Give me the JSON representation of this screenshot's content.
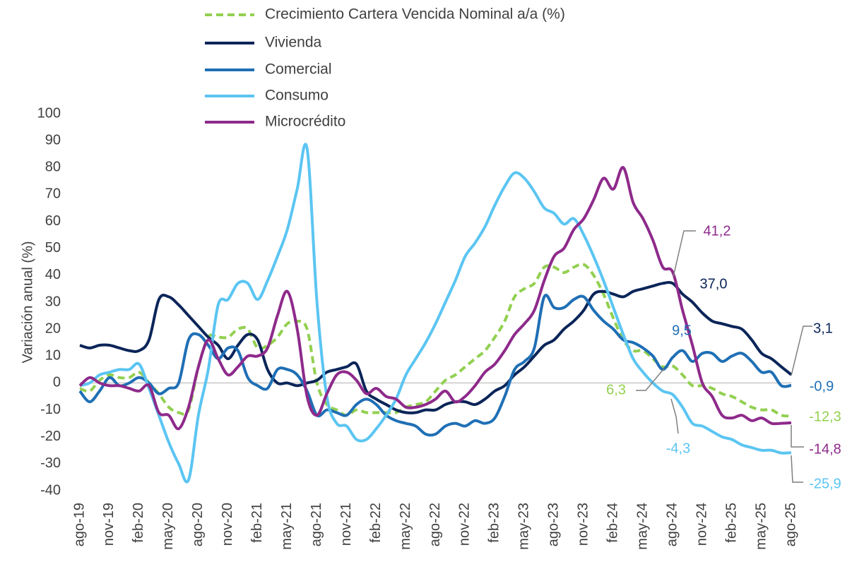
{
  "chart_data": {
    "type": "line",
    "y_axis_label": "Variación anual (%)",
    "ylim": [
      -40,
      100
    ],
    "yticks": [
      -40,
      -30,
      -20,
      -10,
      0,
      10,
      20,
      30,
      40,
      50,
      60,
      70,
      80,
      90,
      100
    ],
    "grid": false,
    "categories": [
      "ago-19",
      null,
      null,
      "nov-19",
      null,
      null,
      "feb-20",
      null,
      null,
      "may-20",
      null,
      null,
      "ago-20",
      null,
      null,
      "nov-20",
      null,
      null,
      "feb-21",
      null,
      null,
      "may-21",
      null,
      null,
      "ago-21",
      null,
      null,
      "nov-21",
      null,
      null,
      "feb-22",
      null,
      null,
      "may-22",
      null,
      null,
      "ago-22",
      null,
      null,
      "nov-22",
      null,
      null,
      "feb-23",
      null,
      null,
      "may-23",
      null,
      null,
      "ago-23",
      null,
      null,
      "nov-23",
      null,
      null,
      "feb-24",
      null,
      null,
      "may-24",
      null,
      null,
      "ago-24",
      null,
      null,
      "nov-24",
      null,
      null,
      "feb-25",
      null,
      null,
      "may-25",
      null,
      null,
      "ago-25"
    ],
    "series": [
      {
        "name": "Crecimiento Cartera Vencida Nominal a/a (%)",
        "color": "#92d050",
        "dashed": true,
        "values": [
          -2,
          -3,
          1,
          3,
          2,
          2,
          4,
          0,
          -4,
          -9,
          -11,
          -10,
          6,
          17,
          17,
          17,
          20,
          20,
          13,
          14,
          17,
          22,
          23,
          20,
          0,
          -8,
          -10,
          -12,
          -10,
          -11,
          -11,
          -11,
          -11,
          -9,
          -8,
          -7,
          -3,
          1,
          3,
          6,
          9,
          12,
          17,
          23,
          32,
          35,
          37,
          43,
          43,
          41,
          43,
          44,
          40,
          33,
          24,
          16,
          12,
          12,
          9,
          6,
          6.3,
          3,
          -1,
          -1,
          -2,
          -4,
          -5,
          -7,
          -9,
          -10,
          -10,
          -12,
          -12.3
        ],
        "value_labels": [
          null,
          null,
          null,
          null,
          null,
          null,
          null,
          null,
          null,
          null,
          null,
          null,
          null,
          null,
          null,
          null,
          null,
          null,
          null,
          null,
          null,
          null,
          null,
          null,
          null,
          null,
          null,
          null,
          null,
          null,
          null,
          null,
          null,
          null,
          null,
          null,
          null,
          null,
          null,
          null,
          null,
          null,
          null,
          null,
          null,
          null,
          null,
          null,
          null,
          null,
          null,
          null,
          null,
          null,
          null,
          null,
          null,
          null,
          null,
          null,
          "6,3",
          null,
          null,
          null,
          null,
          null,
          null,
          null,
          null,
          null,
          null,
          null,
          "-12,3"
        ]
      },
      {
        "name": "Vivienda",
        "color": "#0b2559",
        "values": [
          14,
          13,
          14,
          14,
          13,
          12,
          12,
          16,
          31,
          32,
          29,
          25,
          21,
          17,
          14,
          9,
          14,
          18,
          16,
          5,
          0,
          0,
          -1,
          0,
          1,
          4,
          5,
          6,
          7,
          -3,
          -6,
          -8,
          -10,
          -11,
          -11,
          -10,
          -10,
          -8,
          -7,
          -7,
          -8,
          -6,
          -3,
          -1,
          3,
          6,
          10,
          14,
          16,
          20,
          23,
          27,
          33,
          34,
          33,
          32,
          34,
          35,
          36,
          37,
          37.0,
          33,
          30,
          26,
          23,
          22,
          21,
          20,
          16,
          11,
          9,
          6,
          3.1
        ],
        "value_labels": [
          null,
          null,
          null,
          null,
          null,
          null,
          null,
          null,
          null,
          null,
          null,
          null,
          null,
          null,
          null,
          null,
          null,
          null,
          null,
          null,
          null,
          null,
          null,
          null,
          null,
          null,
          null,
          null,
          null,
          null,
          null,
          null,
          null,
          null,
          null,
          null,
          null,
          null,
          null,
          null,
          null,
          null,
          null,
          null,
          null,
          null,
          null,
          null,
          null,
          null,
          null,
          null,
          null,
          null,
          null,
          null,
          null,
          null,
          null,
          null,
          "37,0",
          null,
          null,
          null,
          null,
          null,
          null,
          null,
          null,
          null,
          null,
          null,
          "3,1"
        ]
      },
      {
        "name": "Comercial",
        "color": "#1f6fb5",
        "values": [
          -3,
          -7,
          -3,
          2,
          -1,
          0,
          2,
          0,
          -4,
          -2,
          0,
          16,
          18,
          14,
          9,
          13,
          12,
          2,
          -1,
          -2,
          5,
          5,
          3,
          -3,
          -12,
          -10,
          -11,
          -12,
          -8,
          -6,
          -8,
          -12,
          -14,
          -15,
          -16,
          -19,
          -19,
          -16,
          -15,
          -16,
          -14,
          -15,
          -13,
          -5,
          5,
          8,
          13,
          32,
          28,
          28,
          31,
          32,
          27,
          23,
          20,
          16,
          15,
          13,
          10,
          5,
          9.5,
          12,
          8,
          11,
          11,
          8,
          10,
          11,
          8,
          4,
          4,
          -1,
          -0.9
        ],
        "value_labels": [
          null,
          null,
          null,
          null,
          null,
          null,
          null,
          null,
          null,
          null,
          null,
          null,
          null,
          null,
          null,
          null,
          null,
          null,
          null,
          null,
          null,
          null,
          null,
          null,
          null,
          null,
          null,
          null,
          null,
          null,
          null,
          null,
          null,
          null,
          null,
          null,
          null,
          null,
          null,
          null,
          null,
          null,
          null,
          null,
          null,
          null,
          null,
          null,
          null,
          null,
          null,
          null,
          null,
          null,
          null,
          null,
          null,
          null,
          null,
          null,
          "9,5",
          null,
          null,
          null,
          null,
          null,
          null,
          null,
          null,
          null,
          null,
          null,
          "-0,9"
        ]
      },
      {
        "name": "Consumo",
        "color": "#5bc5f2",
        "values": [
          -1,
          0,
          3,
          4,
          5,
          5,
          7,
          -2,
          -12,
          -22,
          -30,
          -36,
          -12,
          5,
          29,
          31,
          37,
          37,
          31,
          38,
          47,
          57,
          72,
          87,
          30,
          -5,
          -15,
          -16,
          -21,
          -21,
          -17,
          -12,
          -6,
          3,
          9,
          15,
          22,
          30,
          38,
          47,
          52,
          58,
          66,
          73,
          78,
          76,
          71,
          65,
          63,
          59,
          61,
          55,
          47,
          38,
          28,
          18,
          9,
          4,
          0,
          -3,
          -4.3,
          -9,
          -15,
          -16,
          -18,
          -20,
          -21,
          -23,
          -24,
          -25,
          -25,
          -26,
          -25.9
        ],
        "value_labels": [
          null,
          null,
          null,
          null,
          null,
          null,
          null,
          null,
          null,
          null,
          null,
          null,
          null,
          null,
          null,
          null,
          null,
          null,
          null,
          null,
          null,
          null,
          null,
          null,
          null,
          null,
          null,
          null,
          null,
          null,
          null,
          null,
          null,
          null,
          null,
          null,
          null,
          null,
          null,
          null,
          null,
          null,
          null,
          null,
          null,
          null,
          null,
          null,
          null,
          null,
          null,
          null,
          null,
          null,
          null,
          null,
          null,
          null,
          null,
          null,
          "-4,3",
          null,
          null,
          null,
          null,
          null,
          null,
          null,
          null,
          null,
          null,
          null,
          "-25,9"
        ]
      },
      {
        "name": "Microcrédito",
        "color": "#8e2a8b",
        "values": [
          -1,
          2,
          0,
          -1,
          -1,
          -2,
          -3,
          -1,
          -11,
          -12,
          -17,
          -9,
          6,
          16,
          9,
          3,
          6,
          10,
          10,
          13,
          25,
          34,
          20,
          -5,
          -12,
          -4,
          3,
          4,
          1,
          -4,
          -2,
          -5,
          -6,
          -9,
          -9,
          -8,
          -6,
          -3,
          -7,
          -5,
          -1,
          4,
          7,
          12,
          18,
          22,
          27,
          38,
          47,
          50,
          57,
          61,
          68,
          76,
          72,
          80,
          67,
          61,
          53,
          43,
          41.2,
          27,
          14,
          0,
          -5,
          -12,
          -13,
          -12,
          -14,
          -13,
          -15,
          -15,
          -14.8
        ],
        "value_labels": [
          null,
          null,
          null,
          null,
          null,
          null,
          null,
          null,
          null,
          null,
          null,
          null,
          null,
          null,
          null,
          null,
          null,
          null,
          null,
          null,
          null,
          null,
          null,
          null,
          null,
          null,
          null,
          null,
          null,
          null,
          null,
          null,
          null,
          null,
          null,
          null,
          null,
          null,
          null,
          null,
          null,
          null,
          null,
          null,
          null,
          null,
          null,
          null,
          null,
          null,
          null,
          null,
          null,
          null,
          null,
          null,
          null,
          null,
          null,
          null,
          "41,2",
          null,
          null,
          null,
          null,
          null,
          null,
          null,
          null,
          null,
          null,
          null,
          "-14,8"
        ]
      }
    ]
  }
}
